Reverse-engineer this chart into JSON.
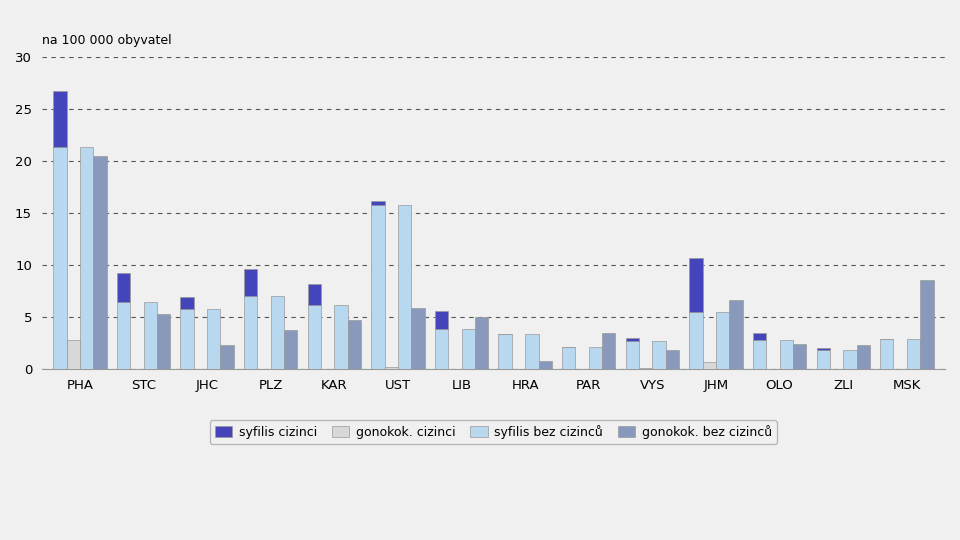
{
  "categories": [
    "PHA",
    "STC",
    "JHC",
    "PLZ",
    "KAR",
    "UST",
    "LIB",
    "HRA",
    "PAR",
    "VYS",
    "JHM",
    "OLO",
    "ZLI",
    "MSK"
  ],
  "series": {
    "syfilis_cizinci": [
      5.4,
      2.8,
      1.1,
      2.6,
      2.0,
      0.3,
      1.7,
      0.0,
      0.0,
      0.3,
      5.2,
      0.7,
      0.2,
      0.0
    ],
    "gonokok_cizinci": [
      2.8,
      0.0,
      0.0,
      0.0,
      0.0,
      0.2,
      0.0,
      0.0,
      0.0,
      0.1,
      0.7,
      0.0,
      0.0,
      0.0
    ],
    "syfilis_bez_cizincu": [
      21.3,
      6.4,
      5.8,
      7.0,
      6.2,
      15.8,
      3.9,
      3.4,
      2.1,
      2.7,
      5.5,
      2.8,
      1.8,
      2.9
    ],
    "gonokok_bez_cizincu": [
      20.5,
      5.3,
      2.3,
      3.8,
      4.7,
      5.9,
      5.0,
      0.8,
      3.5,
      1.8,
      6.6,
      2.4,
      2.3,
      8.6
    ]
  },
  "colors": {
    "syfilis_cizinci": "#4444bb",
    "gonokok_cizinci": "#d8d8d8",
    "syfilis_bez_cizincu": "#b8d8f0",
    "gonokok_bez_cizincu": "#8899bb"
  },
  "legend_labels": [
    "syfilis cizinci",
    "gonokok. cizinci",
    "syfilis bez cizinců",
    "gonokok. bez cizinců"
  ],
  "ylabel": "na 100 000 obyvatel",
  "ylim": [
    0,
    30
  ],
  "yticks": [
    0,
    5,
    10,
    15,
    20,
    25,
    30
  ],
  "bar_width": 0.21,
  "background_color": "#f0f0f0",
  "grid_color": "#333333"
}
